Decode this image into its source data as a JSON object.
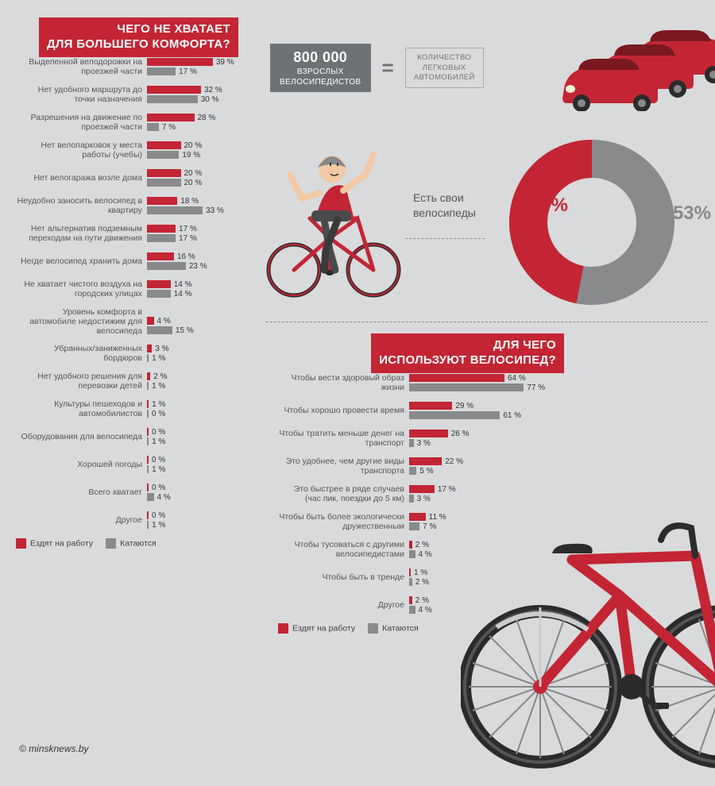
{
  "colors": {
    "red": "#c32534",
    "grey": "#888a8c",
    "bg": "#d9dadb",
    "dark_grey": "#6f7274",
    "text": "#404040"
  },
  "left": {
    "title_l1": "ЧЕГО НЕ ХВАТАЕТ",
    "title_l2": "ДЛЯ БОЛЬШЕГО КОМФОРТА?",
    "bar_max": 40,
    "items": [
      {
        "label": "Выделенной велодорожки на проезжей части",
        "red": 39,
        "grey": 17
      },
      {
        "label": "Нет удобного маршрута до точки назначения",
        "red": 32,
        "grey": 30
      },
      {
        "label": "Разрешения на движение по проезжей части",
        "red": 28,
        "grey": 7
      },
      {
        "label": "Нет велопарковок у места работы (учебы)",
        "red": 20,
        "grey": 19
      },
      {
        "label": "Нет велогаража возле дома",
        "red": 20,
        "grey": 20
      },
      {
        "label": "Неудобно заносить велосипед в квартиру",
        "red": 18,
        "grey": 33
      },
      {
        "label": "Нет альтернатив подземным переходам на пути движения",
        "red": 17,
        "grey": 17
      },
      {
        "label": "Негде велосипед хранить дома",
        "red": 16,
        "grey": 23
      },
      {
        "label": "Не хватает чистого воздуха на городских улицах",
        "red": 14,
        "grey": 14
      },
      {
        "label": "Уровень комфорта в автомобиле недостижим для велосипеда",
        "red": 4,
        "grey": 15
      },
      {
        "label": "Убранных/заниженных бордюров",
        "red": 3,
        "grey": 1
      },
      {
        "label": "Нет удобного решения для перевозки детей",
        "red": 2,
        "grey": 1
      },
      {
        "label": "Культуры пешеходов и автомобилистов",
        "red": 1,
        "grey": 0
      },
      {
        "label": "Оборудования для велосипеда",
        "red": 0,
        "grey": 1
      },
      {
        "label": "Хорошей погоды",
        "red": 0,
        "grey": 1
      },
      {
        "label": "Всего хватает",
        "red": 0,
        "grey": 4
      },
      {
        "label": "Другое",
        "red": 0,
        "grey": 1
      }
    ]
  },
  "legend": {
    "red_label": "Ездят на работу",
    "grey_label": "Катаются"
  },
  "top_info": {
    "badge1_big": "800 000",
    "badge1_l1": "ВЗРОСЛЫХ",
    "badge1_l2": "ВЕЛОСИПЕДИСТОВ",
    "eq": "=",
    "badge2_l1": "КОЛИЧЕСТВО",
    "badge2_l2": "ЛЕГКОВЫХ",
    "badge2_l3": "АВТОМОБИЛЕЙ"
  },
  "donut": {
    "red_pct": 47,
    "grey_pct": 53,
    "red_label": "47%",
    "grey_label": "53%",
    "label": "Есть свои велосипеды"
  },
  "right": {
    "title_l1": "ДЛЯ ЧЕГО",
    "title_l2": "ИСПОЛЬЗУЮТ ВЕЛОСИПЕД?",
    "bar_max": 80,
    "items": [
      {
        "label": "Чтобы вести здоровый образ жизни",
        "red": 64,
        "grey": 77
      },
      {
        "label": "Чтобы хорошо провести время",
        "red": 29,
        "grey": 61
      },
      {
        "label": "Чтобы тратить меньше денег на транспорт",
        "red": 26,
        "grey": 3
      },
      {
        "label": "Это удобнее, чем другие виды транспорта",
        "red": 22,
        "grey": 5
      },
      {
        "label": "Это быстрее в ряде случаев (час пик, поездки до 5 км)",
        "red": 17,
        "grey": 3
      },
      {
        "label": "Чтобы быть более экологически дружественным",
        "red": 11,
        "grey": 7
      },
      {
        "label": "Чтобы тусоваться с другими велосипедистами",
        "red": 2,
        "grey": 4
      },
      {
        "label": "Чтобы быть в тренде",
        "red": 1,
        "grey": 2
      },
      {
        "label": "Другое",
        "red": 2,
        "grey": 4
      }
    ]
  },
  "footer": "© minsknews.by"
}
